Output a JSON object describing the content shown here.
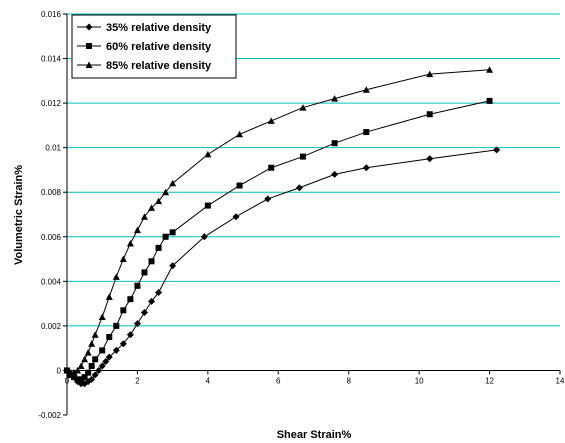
{
  "chart_data": {
    "type": "line",
    "title": "",
    "xlabel": "Shear Strain%",
    "ylabel": "Volumetric Strain%",
    "xlim": [
      0,
      14
    ],
    "ylim": [
      -0.002,
      0.016
    ],
    "x_ticks": [
      "0",
      "2",
      "4",
      "6",
      "8",
      "10",
      "12",
      "14"
    ],
    "y_ticks": [
      "-0.002",
      "0",
      "0.002",
      "0.004",
      "0.006",
      "0.008",
      "0.01",
      "0.012",
      "0.014",
      "0.016"
    ],
    "grid": "horizontal",
    "gridline_color": "#00c0c0",
    "legend_position": "top-left",
    "series": [
      {
        "name": "35% relative density",
        "marker": "diamond",
        "x": [
          0,
          0.1,
          0.2,
          0.3,
          0.4,
          0.5,
          0.6,
          0.7,
          0.8,
          0.9,
          1.0,
          1.1,
          1.2,
          1.4,
          1.6,
          1.8,
          2.0,
          2.2,
          2.4,
          2.6,
          3.0,
          3.9,
          4.8,
          5.7,
          6.6,
          7.6,
          8.5,
          10.3,
          12.2
        ],
        "y": [
          0,
          -0.0002,
          -0.0003,
          -0.0005,
          -0.0006,
          -0.0006,
          -0.0005,
          -0.0004,
          -0.0002,
          0,
          0.0002,
          0.0004,
          0.0006,
          0.0009,
          0.0012,
          0.0016,
          0.0021,
          0.0026,
          0.0031,
          0.0035,
          0.0047,
          0.006,
          0.0069,
          0.0077,
          0.0082,
          0.0088,
          0.0091,
          0.0095,
          0.0099
        ]
      },
      {
        "name": "60% relative density",
        "marker": "square",
        "x": [
          0,
          0.1,
          0.2,
          0.3,
          0.4,
          0.5,
          0.6,
          0.7,
          0.8,
          1.0,
          1.2,
          1.4,
          1.6,
          1.8,
          2.0,
          2.2,
          2.4,
          2.6,
          2.8,
          3.0,
          4.0,
          4.9,
          5.8,
          6.7,
          7.6,
          8.5,
          10.3,
          12.0
        ],
        "y": [
          0,
          -0.0002,
          -0.0003,
          -0.0004,
          -0.0004,
          -0.0003,
          -0.0001,
          0.0002,
          0.0005,
          0.0009,
          0.0015,
          0.002,
          0.0027,
          0.0032,
          0.0038,
          0.0044,
          0.0049,
          0.0055,
          0.006,
          0.0062,
          0.0074,
          0.0083,
          0.0091,
          0.0096,
          0.0102,
          0.0107,
          0.0115,
          0.0121
        ]
      },
      {
        "name": "85% relative density",
        "marker": "triangle",
        "x": [
          0,
          0.1,
          0.2,
          0.3,
          0.4,
          0.5,
          0.6,
          0.7,
          0.8,
          1.0,
          1.2,
          1.4,
          1.6,
          1.8,
          2.0,
          2.2,
          2.4,
          2.6,
          2.8,
          3.0,
          4.0,
          4.9,
          5.8,
          6.7,
          7.6,
          8.5,
          10.3,
          12.0
        ],
        "y": [
          0,
          -0.0001,
          -0.0001,
          0,
          0.0002,
          0.0005,
          0.0008,
          0.0012,
          0.0016,
          0.0024,
          0.0033,
          0.0042,
          0.005,
          0.0057,
          0.0063,
          0.0069,
          0.0073,
          0.0076,
          0.008,
          0.0084,
          0.0097,
          0.0106,
          0.0112,
          0.0118,
          0.0122,
          0.0126,
          0.0133,
          0.0135
        ]
      }
    ]
  }
}
